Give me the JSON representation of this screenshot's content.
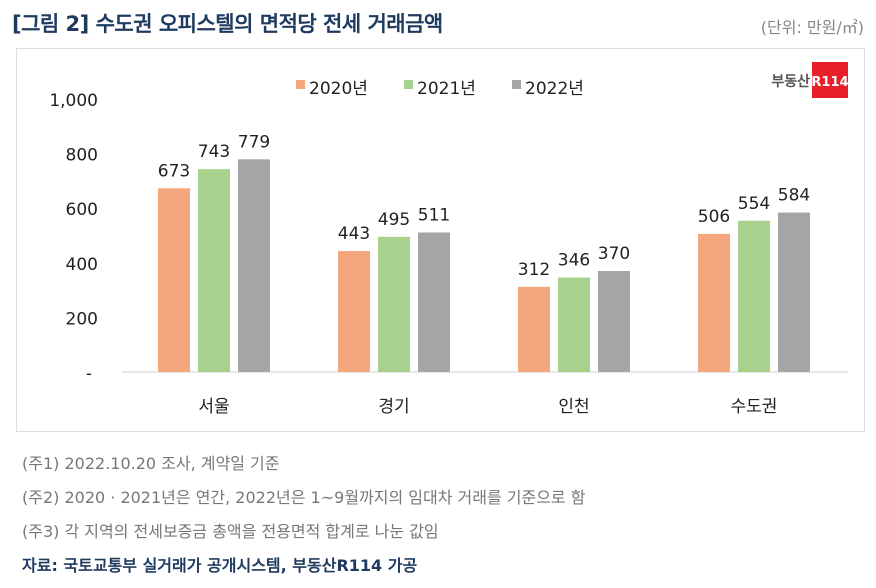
{
  "title": "[그림 2] 수도권 오피스텔의 면적당 전세 거래금액",
  "unit": "(단위: 만원/㎡)",
  "logo": "부동산R114",
  "notes": [
    "(주1) 2022.10.20 조사, 계약일 기준",
    "(주2) 2020 · 2021년은 연간, 2022년은 1~9월까지의 임대차 거래를 기준으로 함",
    "(주3) 각 지역의 전세보증금 총액을 전용면적 합계로 나눈 값임"
  ],
  "source": "자료: 국토교통부 실거래가 공개시스템, 부동산R114 가공",
  "chart_data": {
    "type": "bar",
    "categories": [
      "서울",
      "경기",
      "인천",
      "수도권"
    ],
    "series": [
      {
        "name": "2020년",
        "color": "#f4a77c",
        "values": [
          673,
          443,
          312,
          506
        ]
      },
      {
        "name": "2021년",
        "color": "#a8d18d",
        "values": [
          743,
          495,
          346,
          554
        ]
      },
      {
        "name": "2022년",
        "color": "#a5a5a5",
        "values": [
          779,
          511,
          370,
          584
        ]
      }
    ],
    "ylim": [
      0,
      1000
    ],
    "yticks": [
      "-",
      "200",
      "400",
      "600",
      "800",
      "1,000"
    ],
    "legend": "top",
    "grid": false
  }
}
